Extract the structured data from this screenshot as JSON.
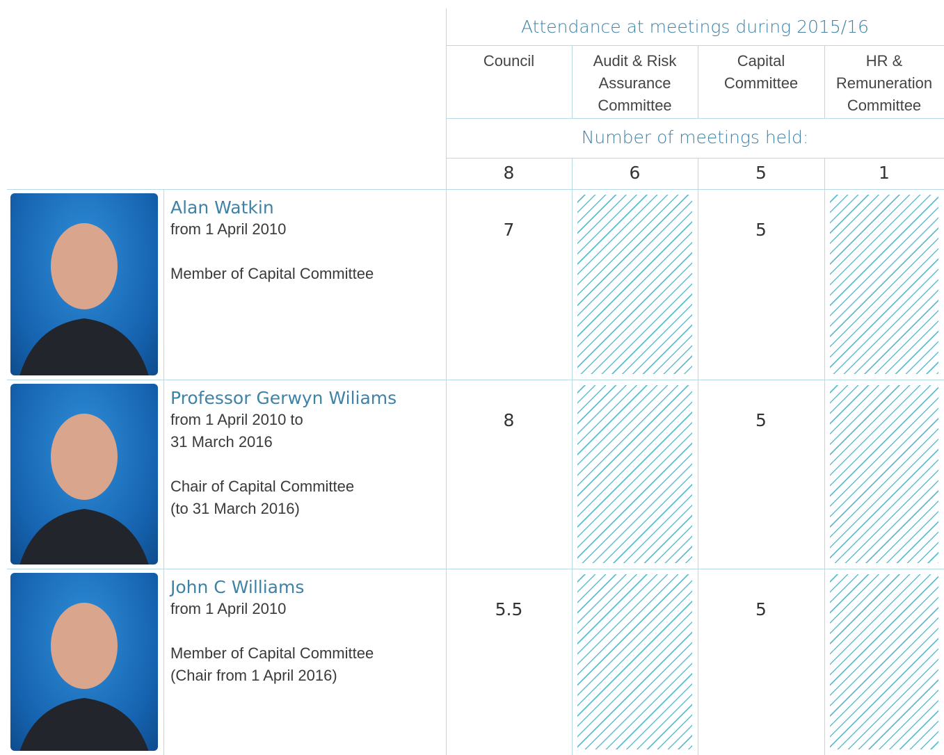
{
  "header": {
    "title": "Attendance at meetings during 2015/16",
    "columns": [
      [
        "Council"
      ],
      [
        "Audit & Risk",
        "Assurance",
        "Committee"
      ],
      [
        "Capital",
        "Committee"
      ],
      [
        "HR &",
        "Remuneration",
        "Committee"
      ]
    ],
    "subtitle": "Number of meetings held:",
    "meetings_held": [
      8,
      6,
      5,
      1
    ]
  },
  "members": [
    {
      "name": "Alan Watkin",
      "details": [
        [
          "from 1 April 2010"
        ],
        [
          "Member of Capital Committee"
        ]
      ],
      "attendance": [
        7,
        null,
        5,
        null
      ]
    },
    {
      "name": "Professor Gerwyn Wiliams",
      "details": [
        [
          "from 1 April 2010 to",
          "31 March 2016"
        ],
        [
          "Chair of Capital Committee",
          "(to 31 March 2016)"
        ]
      ],
      "attendance": [
        8,
        null,
        5,
        null
      ]
    },
    {
      "name": "John C Williams",
      "details": [
        [
          "from 1 April 2010"
        ],
        [
          "Member of Capital Committee",
          "(Chair from 1 April 2016)"
        ]
      ],
      "attendance": [
        5.5,
        null,
        5,
        null
      ]
    }
  ]
}
